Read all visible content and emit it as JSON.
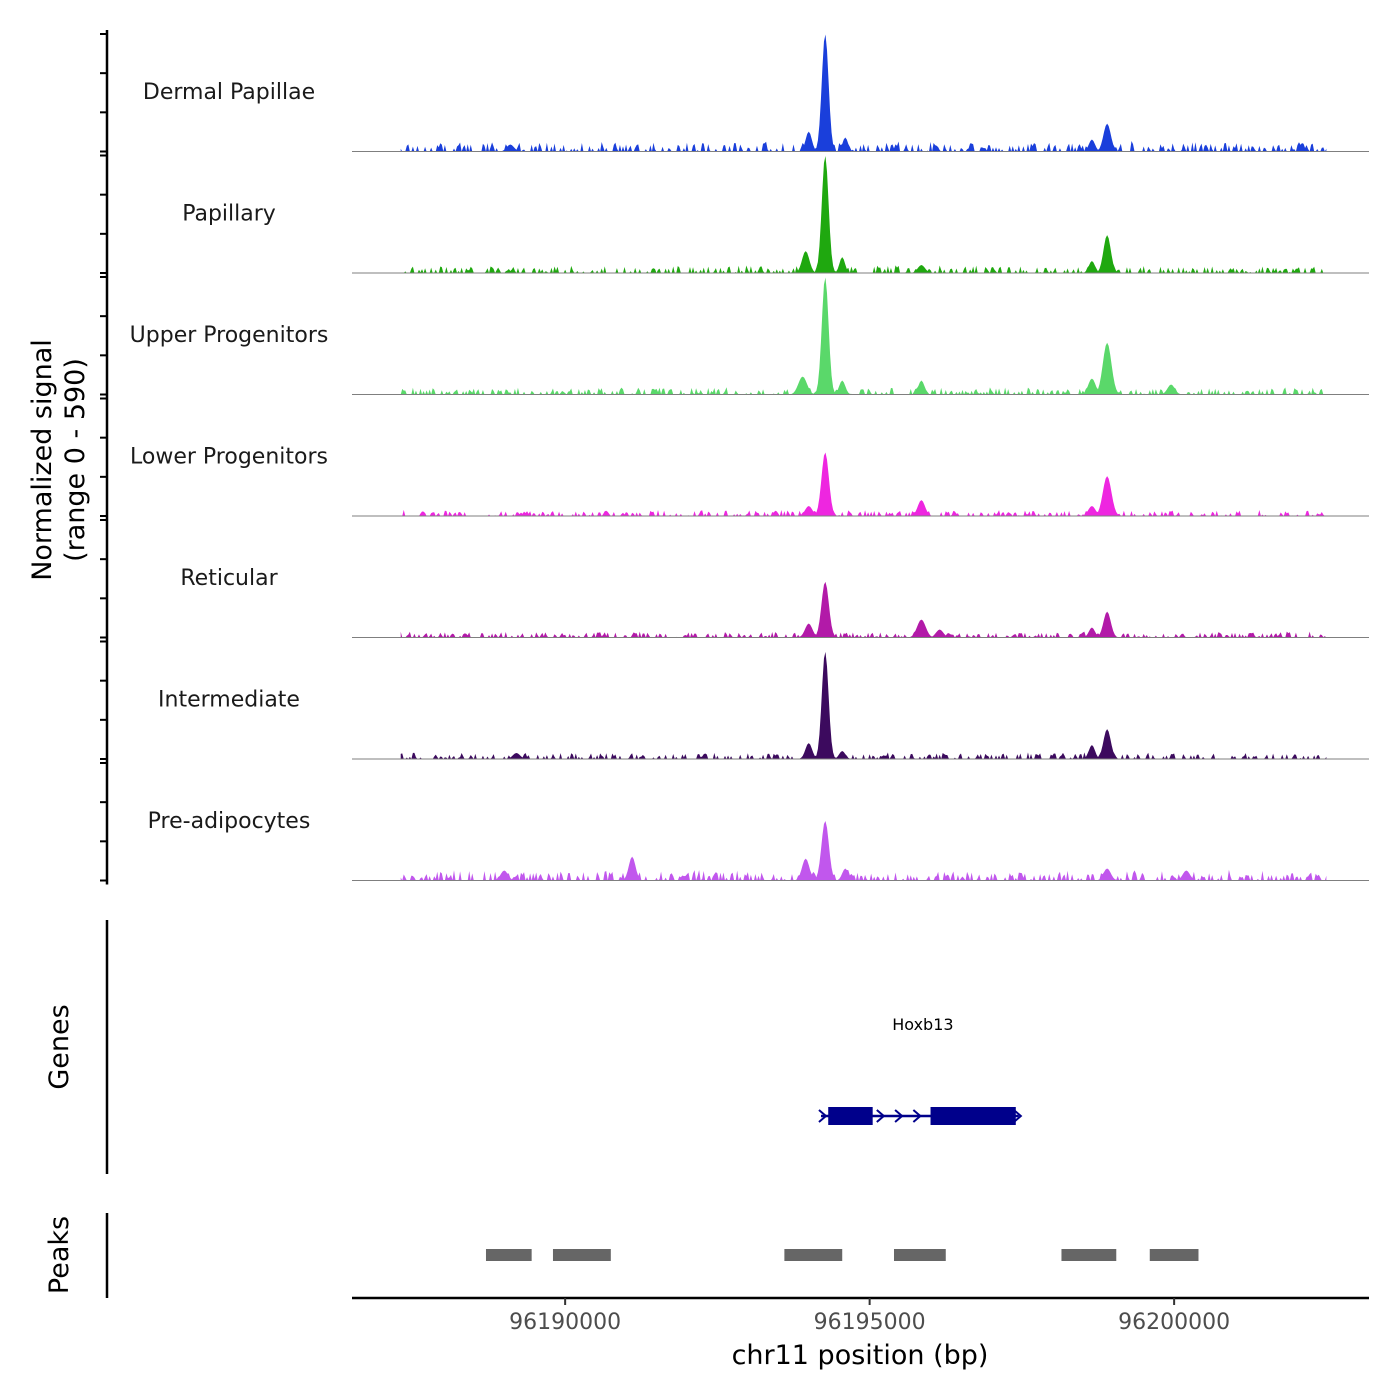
{
  "chart_data": {
    "type": "area",
    "title": "",
    "ylabel_line1": "Normalized signal",
    "ylabel_line2": "(range 0 - 590)",
    "xlabel": "chr11 position (bp)",
    "x_range": [
      96186500,
      96203200
    ],
    "y_range": [
      0,
      590
    ],
    "x_ticks": [
      {
        "value": 96190000,
        "label": "96190000"
      },
      {
        "value": 96195000,
        "label": "96195000"
      },
      {
        "value": 96200000,
        "label": "96200000"
      }
    ],
    "signal_start": 96187300,
    "signal_end": 96202500,
    "tracks": [
      {
        "name": "Dermal Papillae",
        "color": "#1a3fdb",
        "baseline": 40,
        "jitter": 14,
        "peaks": [
          [
            96194270,
            590,
            55
          ],
          [
            96194000,
            100,
            50
          ],
          [
            96194600,
            70,
            45
          ],
          [
            96198900,
            140,
            60
          ],
          [
            96198650,
            60,
            50
          ],
          [
            96189100,
            35,
            60
          ]
        ]
      },
      {
        "name": "Papillary",
        "color": "#1fa80f",
        "baseline": 30,
        "jitter": 10,
        "peaks": [
          [
            96194270,
            590,
            55
          ],
          [
            96193950,
            110,
            60
          ],
          [
            96194550,
            80,
            45
          ],
          [
            96198900,
            190,
            60
          ],
          [
            96198650,
            60,
            50
          ],
          [
            96195850,
            40,
            60
          ]
        ]
      },
      {
        "name": "Upper Progenitors",
        "color": "#5ad86a",
        "baseline": 28,
        "jitter": 10,
        "peaks": [
          [
            96194270,
            590,
            55
          ],
          [
            96193900,
            90,
            70
          ],
          [
            96194550,
            70,
            50
          ],
          [
            96198900,
            260,
            70
          ],
          [
            96198650,
            80,
            60
          ],
          [
            96195850,
            70,
            50
          ],
          [
            96199950,
            50,
            60
          ]
        ]
      },
      {
        "name": "Lower Progenitors",
        "color": "#ee26e0",
        "baseline": 24,
        "jitter": 8,
        "peaks": [
          [
            96194270,
            320,
            60
          ],
          [
            96194000,
            50,
            60
          ],
          [
            96195850,
            80,
            60
          ],
          [
            96198900,
            200,
            70
          ],
          [
            96198650,
            50,
            60
          ]
        ]
      },
      {
        "name": "Reticular",
        "color": "#b21aa8",
        "baseline": 24,
        "jitter": 8,
        "peaks": [
          [
            96194270,
            280,
            60
          ],
          [
            96194000,
            70,
            60
          ],
          [
            96195850,
            90,
            70
          ],
          [
            96198900,
            130,
            60
          ],
          [
            96198650,
            50,
            50
          ],
          [
            96196150,
            40,
            60
          ]
        ]
      },
      {
        "name": "Intermediate",
        "color": "#3c0a5e",
        "baseline": 26,
        "jitter": 10,
        "peaks": [
          [
            96194270,
            540,
            55
          ],
          [
            96194000,
            80,
            55
          ],
          [
            96194550,
            40,
            50
          ],
          [
            96198900,
            150,
            60
          ],
          [
            96198650,
            70,
            50
          ],
          [
            96189200,
            30,
            60
          ]
        ]
      },
      {
        "name": "Pre-adipocytes",
        "color": "#c157ed",
        "baseline": 40,
        "jitter": 16,
        "peaks": [
          [
            96194270,
            300,
            60
          ],
          [
            96193950,
            110,
            60
          ],
          [
            96191100,
            120,
            55
          ],
          [
            96194600,
            60,
            50
          ],
          [
            96189000,
            50,
            60
          ],
          [
            96198900,
            60,
            60
          ],
          [
            96200200,
            50,
            60
          ]
        ]
      }
    ],
    "genes_label": "Genes",
    "gene": {
      "name": "Hoxb13",
      "start": 96194300,
      "end": 96197450,
      "strand": "+",
      "exons": [
        [
          96194320,
          96195050
        ],
        [
          96196000,
          96197400
        ]
      ],
      "color": "#00008b"
    },
    "peaks_label": "Peaks",
    "peak_color": "#666666",
    "peak_regions": [
      [
        96188700,
        96189450
      ],
      [
        96189800,
        96190750
      ],
      [
        96193600,
        96194550
      ],
      [
        96195400,
        96196250
      ],
      [
        96198150,
        96199050
      ],
      [
        96199600,
        96200400
      ]
    ]
  }
}
